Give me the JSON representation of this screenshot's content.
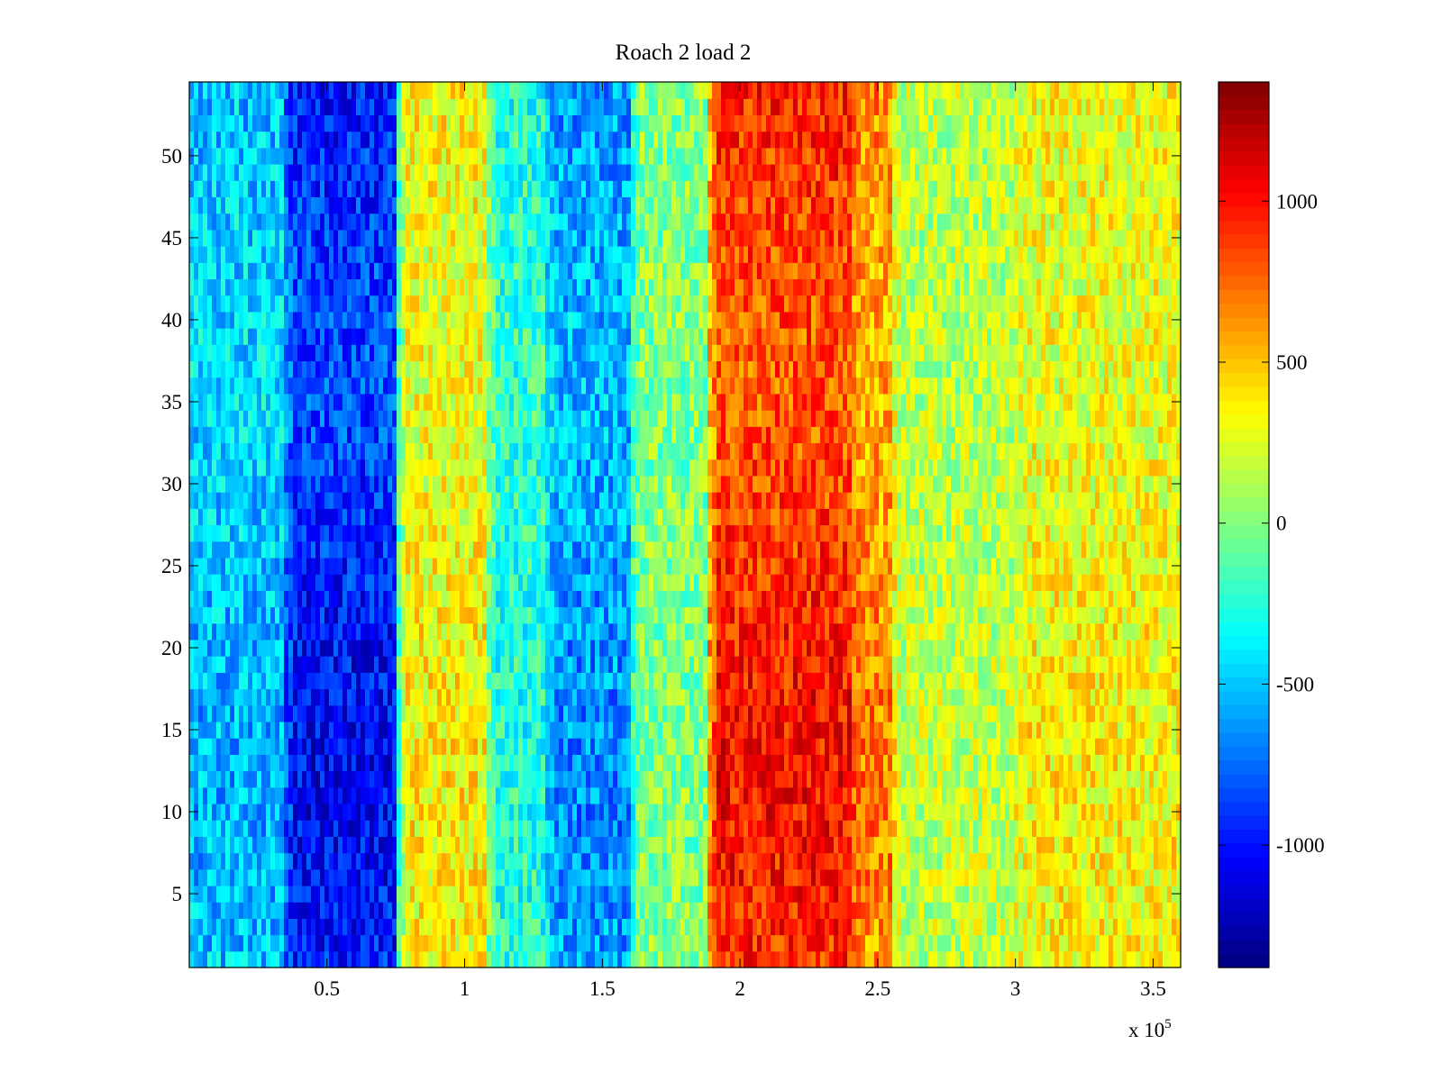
{
  "chart_data": {
    "type": "heatmap",
    "title": "Roach 2 load 2",
    "xlabel": "",
    "ylabel": "",
    "x_multiplier_label": "x 10",
    "x_multiplier_exponent": "5",
    "xlim": [
      0,
      3.6
    ],
    "ylim": [
      0.5,
      54.5
    ],
    "x_ticks": [
      0.5,
      1,
      1.5,
      2,
      2.5,
      3,
      3.5
    ],
    "x_tick_labels": [
      "0.5",
      "1",
      "1.5",
      "2",
      "2.5",
      "3",
      "3.5"
    ],
    "y_ticks": [
      5,
      10,
      15,
      20,
      25,
      30,
      35,
      40,
      45,
      50
    ],
    "y_tick_labels": [
      "5",
      "10",
      "15",
      "20",
      "25",
      "30",
      "35",
      "40",
      "45",
      "50"
    ],
    "rows": 54,
    "colormap": "jet",
    "clim": [
      -1380,
      1370
    ],
    "colorbar": {
      "ticks": [
        -1000,
        -500,
        0,
        500,
        1000
      ],
      "tick_labels": [
        "-1000",
        "-500",
        "0",
        "500",
        "1000"
      ]
    },
    "column_bands": [
      {
        "x_start": 0.0,
        "x_end": 0.35,
        "value": -500
      },
      {
        "x_start": 0.35,
        "x_end": 0.75,
        "value": -950
      },
      {
        "x_start": 0.75,
        "x_end": 1.08,
        "value": 330
      },
      {
        "x_start": 1.08,
        "x_end": 1.3,
        "value": -250
      },
      {
        "x_start": 1.3,
        "x_end": 1.6,
        "value": -600
      },
      {
        "x_start": 1.6,
        "x_end": 1.88,
        "value": 0
      },
      {
        "x_start": 1.88,
        "x_end": 2.4,
        "value": 900
      },
      {
        "x_start": 2.4,
        "x_end": 2.55,
        "value": 620
      },
      {
        "x_start": 2.55,
        "x_end": 3.0,
        "value": 160
      },
      {
        "x_start": 3.0,
        "x_end": 3.6,
        "value": 320
      }
    ],
    "grid": false,
    "legend": "colorbar-right"
  }
}
